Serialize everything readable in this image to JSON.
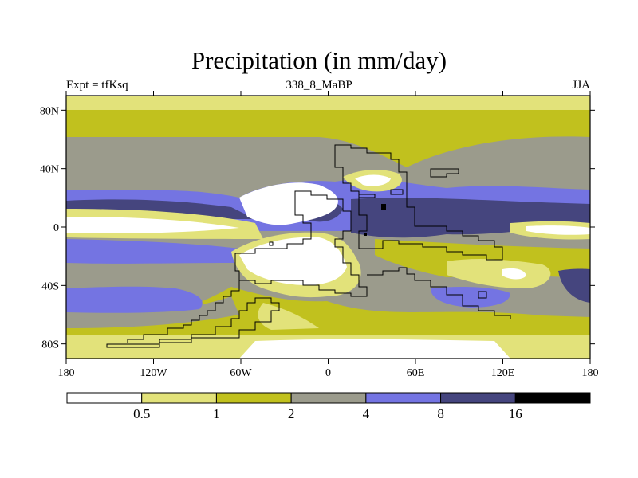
{
  "title": "Precipitation (in mm/day)",
  "subtitle_left": "Expt = tfKsq",
  "subtitle_center": "338_8_MaBP",
  "subtitle_right": "JJA",
  "colors": {
    "c0": "#ffffff",
    "c1": "#e2e27a",
    "c2": "#c1c11e",
    "c3": "#9b9b8c",
    "c4": "#7474e2",
    "c5": "#45457e",
    "c6": "#000000"
  },
  "axes": {
    "x_ticks": [
      {
        "value": -180,
        "label": "180"
      },
      {
        "value": -120,
        "label": "120W"
      },
      {
        "value": -60,
        "label": "60W"
      },
      {
        "value": 0,
        "label": "0"
      },
      {
        "value": 60,
        "label": "60E"
      },
      {
        "value": 120,
        "label": "120E"
      },
      {
        "value": 180,
        "label": "180"
      }
    ],
    "y_ticks": [
      {
        "value": 80,
        "label": "80N"
      },
      {
        "value": 40,
        "label": "40N"
      },
      {
        "value": 0,
        "label": "0"
      },
      {
        "value": -40,
        "label": "40S"
      },
      {
        "value": -80,
        "label": "80S"
      }
    ],
    "lon_range": [
      -180,
      180
    ],
    "lat_range": [
      -90,
      90
    ]
  },
  "colorbar": {
    "levels": [
      0.5,
      1,
      2,
      4,
      8,
      16
    ],
    "labels": [
      "0.5",
      "1",
      "2",
      "4",
      "8",
      "16"
    ],
    "colors": [
      "#ffffff",
      "#e2e27a",
      "#c1c11e",
      "#9b9b8c",
      "#7474e2",
      "#45457e",
      "#000000"
    ]
  }
}
